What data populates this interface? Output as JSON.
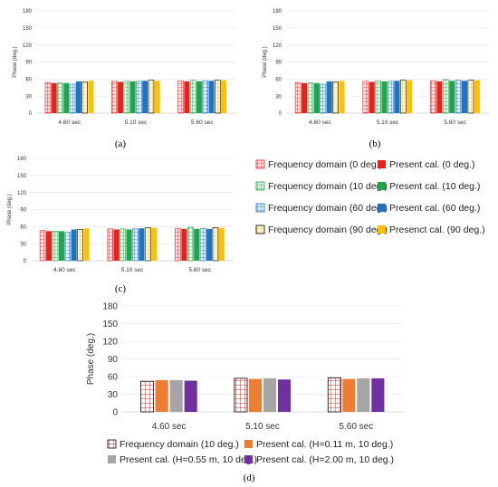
{
  "figure_labels": [
    "(a)",
    "(b)",
    "(c)",
    "(d)"
  ],
  "colors": {
    "freq_0": "#f4a3a3",
    "present_0": "#e8211f",
    "freq_10": "#a8dcb0",
    "present_10": "#1fa64a",
    "freq_60": "#a9cbe6",
    "present_60": "#1f73c4",
    "freq_90": "#ffe59a",
    "present_90": "#ffc000",
    "d_freq_10": "#ffffff",
    "d_freq_10_hatch": "#e8211f",
    "d_present_h011": "#ed7d31",
    "d_present_h055": "#a5a5a5",
    "d_present_h200": "#7030a0",
    "axis": "#d9d9d9",
    "grid": "#e4e4e4"
  },
  "chart_data": [
    {
      "panel": "(a)",
      "type": "bar",
      "categories": [
        "4.60 sec",
        "5.10 sec",
        "5.60 sec"
      ],
      "ylabel": "Phase (deg.)",
      "ylim": [
        0,
        180
      ],
      "yticks": [
        0,
        30,
        60,
        90,
        120,
        150,
        180
      ],
      "grid": true,
      "series": [
        {
          "name": "Frequency domain (0 deg.)",
          "values": [
            54,
            56,
            57
          ]
        },
        {
          "name": "Present cal. (0 deg.)",
          "values": [
            53,
            55,
            56
          ]
        },
        {
          "name": "Frequency domain (10 deg.)",
          "values": [
            53,
            56,
            58
          ]
        },
        {
          "name": "Present cal. (10 deg.)",
          "values": [
            53,
            56,
            56
          ]
        },
        {
          "name": "Frequency domain (60 deg.)",
          "values": [
            51,
            56,
            57
          ]
        },
        {
          "name": "Present cal. (60 deg.)",
          "values": [
            56,
            57,
            57
          ]
        },
        {
          "name": "Frequency domain (90 deg.)",
          "values": [
            55,
            58,
            58
          ]
        },
        {
          "name": "Presenct cal. (90 deg.)",
          "values": [
            57,
            57,
            58
          ]
        }
      ]
    },
    {
      "panel": "(b)",
      "type": "bar",
      "categories": [
        "4.60 sec",
        "5.10 sec",
        "5.60 sec"
      ],
      "ylabel": "Phase (deg.)",
      "ylim": [
        0,
        180
      ],
      "yticks": [
        0,
        30,
        60,
        90,
        120,
        150,
        180
      ],
      "grid": true,
      "series": [
        {
          "name": "Frequency domain (0 deg.)",
          "values": [
            54,
            56,
            57
          ]
        },
        {
          "name": "Present cal. (0 deg.)",
          "values": [
            53,
            55,
            56
          ]
        },
        {
          "name": "Frequency domain (10 deg.)",
          "values": [
            53,
            57,
            59
          ]
        },
        {
          "name": "Present cal. (10 deg.)",
          "values": [
            53,
            56,
            57
          ]
        },
        {
          "name": "Frequency domain (60 deg.)",
          "values": [
            51,
            56,
            58
          ]
        },
        {
          "name": "Present cal. (60 deg.)",
          "values": [
            56,
            57,
            57
          ]
        },
        {
          "name": "Frequency domain (90 deg.)",
          "values": [
            55,
            58,
            58
          ]
        },
        {
          "name": "Presenct cal. (90 deg.)",
          "values": [
            57,
            58,
            58
          ]
        }
      ]
    },
    {
      "panel": "(c)",
      "type": "bar",
      "categories": [
        "4.60 sec",
        "5.10 sec",
        "5.60 sec"
      ],
      "ylabel": "Phase (deg.)",
      "ylim": [
        0,
        180
      ],
      "yticks": [
        0,
        30,
        60,
        90,
        120,
        150,
        180
      ],
      "grid": true,
      "series": [
        {
          "name": "Frequency domain (0 deg.)",
          "values": [
            53,
            56,
            57
          ]
        },
        {
          "name": "Present cal. (0 deg.)",
          "values": [
            52,
            55,
            56
          ]
        },
        {
          "name": "Frequency domain (10 deg.)",
          "values": [
            52,
            56,
            59
          ]
        },
        {
          "name": "Present cal. (10 deg.)",
          "values": [
            52,
            55,
            56
          ]
        },
        {
          "name": "Frequency domain (60 deg.)",
          "values": [
            50,
            56,
            57
          ]
        },
        {
          "name": "Present cal. (60 deg.)",
          "values": [
            55,
            57,
            56
          ]
        },
        {
          "name": "Frequency domain (90 deg.)",
          "values": [
            55,
            58,
            58
          ]
        },
        {
          "name": "Presenct cal. (90 deg.)",
          "values": [
            57,
            58,
            58
          ]
        }
      ]
    },
    {
      "panel": "(d)",
      "type": "bar",
      "categories": [
        "4.60 sec",
        "5.10 sec",
        "5.60 sec"
      ],
      "ylabel": "Phase (deg.)",
      "ylim": [
        0,
        180
      ],
      "yticks": [
        0,
        30,
        60,
        90,
        120,
        150,
        180
      ],
      "grid": true,
      "series": [
        {
          "name": "Frequency domain (10 deg.)",
          "values": [
            52,
            57,
            58
          ]
        },
        {
          "name": "Present cal. (H=0.11 m, 10 deg.)",
          "values": [
            54,
            56,
            56
          ]
        },
        {
          "name": "Present cal. (H=0.55 m, 10 deg.)",
          "values": [
            54,
            57,
            57
          ]
        },
        {
          "name": "Present cal. (H=2.00 m, 10 deg.)",
          "values": [
            53,
            55,
            57
          ]
        }
      ]
    }
  ],
  "legend_abc": [
    [
      "Frequency domain (0 deg.)",
      "Present cal. (0 deg.)"
    ],
    [
      "Frequency domain (10 deg.)",
      "Present cal. (10 deg.)"
    ],
    [
      "Frequency domain (60 deg.)",
      "Present cal. (60 deg.)"
    ],
    [
      "Frequency domain (90 deg.)",
      "Presenct cal. (90 deg.)"
    ]
  ],
  "legend_d": [
    [
      "Frequency domain (10 deg.)",
      "Present cal. (H=0.11 m, 10 deg.)"
    ],
    [
      "Present cal. (H=0.55 m, 10 deg.)",
      "Present cal. (H=2.00 m, 10 deg.)"
    ]
  ]
}
